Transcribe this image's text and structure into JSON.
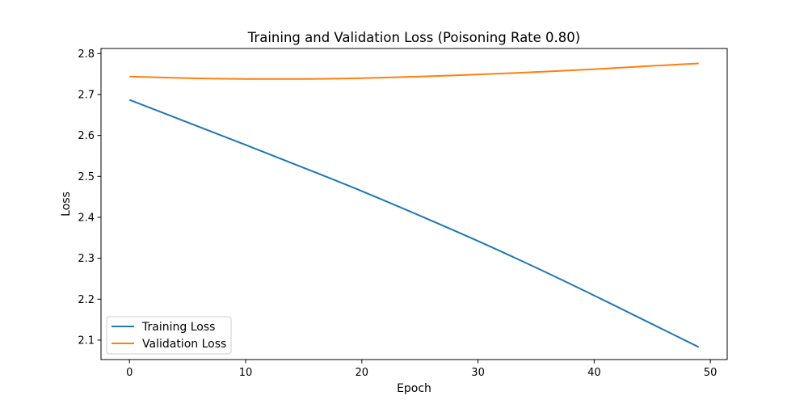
{
  "chart_data": {
    "type": "line",
    "title": "Training and Validation Loss (Poisoning Rate 0.80)",
    "xlabel": "Epoch",
    "ylabel": "Loss",
    "xlim": [
      -2.45,
      51.45
    ],
    "ylim": [
      2.0525,
      2.8125
    ],
    "xticks": [
      0,
      10,
      20,
      30,
      40,
      50
    ],
    "yticks": [
      2.1,
      2.2,
      2.3,
      2.4,
      2.5,
      2.6,
      2.7,
      2.8
    ],
    "ytick_labels": [
      "2.1",
      "2.2",
      "2.3",
      "2.4",
      "2.5",
      "2.6",
      "2.7",
      "2.8"
    ],
    "grid": false,
    "legend_position": "lower-left",
    "series": [
      {
        "name": "Training Loss",
        "color": "#1f77b4",
        "x": [
          0,
          5,
          10,
          15,
          20,
          25,
          30,
          35,
          40,
          45,
          49
        ],
        "y": [
          2.687,
          2.632,
          2.577,
          2.521,
          2.464,
          2.404,
          2.342,
          2.277,
          2.209,
          2.139,
          2.083
        ]
      },
      {
        "name": "Validation Loss",
        "color": "#ff7f0e",
        "x": [
          0,
          5,
          10,
          15,
          20,
          25,
          30,
          35,
          40,
          45,
          49
        ],
        "y": [
          2.744,
          2.74,
          2.738,
          2.738,
          2.74,
          2.744,
          2.749,
          2.755,
          2.762,
          2.77,
          2.776
        ]
      }
    ]
  }
}
